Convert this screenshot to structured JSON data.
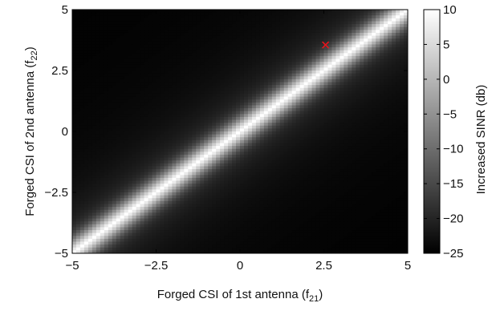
{
  "chart_data": {
    "type": "heatmap",
    "title": "",
    "xlabel": {
      "text": "Forged CSI of 1st antenna (f",
      "subscript": "21",
      "suffix": ")"
    },
    "ylabel": {
      "text": "Forged CSI of 2nd antenna (f",
      "subscript": "22",
      "suffix": ")"
    },
    "xlim": [
      -5,
      5
    ],
    "ylim": [
      -5,
      5
    ],
    "xticks": [
      -5,
      -2.5,
      0,
      2.5,
      5
    ],
    "xtick_labels": [
      "−5",
      "−2.5",
      "0",
      "2.5",
      "5"
    ],
    "yticks": [
      -5,
      -2.5,
      0,
      2.5,
      5
    ],
    "ytick_labels": [
      "−5",
      "−2.5",
      "0",
      "2.5",
      "5"
    ],
    "grid": false,
    "colormap": "gray",
    "colorbar": {
      "label": "Increased SINR (db)",
      "range": [
        -25,
        10
      ],
      "ticks": [
        10,
        5,
        0,
        -5,
        -10,
        -15,
        -20,
        -25
      ],
      "tick_labels": [
        "10",
        "5",
        "0",
        "−5",
        "−10",
        "−15",
        "−20",
        "−25"
      ]
    },
    "field": {
      "description_of_ridge": "bright diagonal ridge along f22 = f21",
      "peak_value": 10,
      "floor_value": -25
    },
    "markers": [
      {
        "name": "",
        "x": 2.55,
        "y": 3.55,
        "symbol": "x",
        "color": "#e8141c"
      }
    ]
  }
}
